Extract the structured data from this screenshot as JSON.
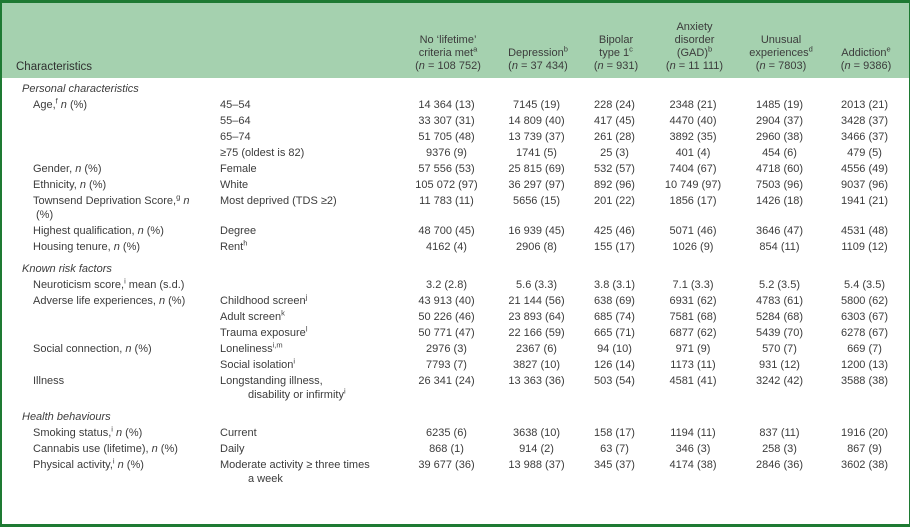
{
  "frame": {
    "border_color": "#1e7a33",
    "header_bg": "#a5d1af",
    "text_color": "#3c3c3c"
  },
  "header": {
    "characteristics_label": "Characteristics",
    "columns": [
      {
        "lines": [
          "No ‘lifetime’",
          "criteria met^{a}"
        ],
        "n": "(~n~ = 108 752)"
      },
      {
        "lines": [
          "Depression^{b}"
        ],
        "n": "(~n~ = 37 434)"
      },
      {
        "lines": [
          "Bipolar",
          "type 1^{c}"
        ],
        "n": "(~n~ = 931)"
      },
      {
        "lines": [
          "Anxiety",
          "disorder",
          "(GAD)^{b}"
        ],
        "n": "(~n~ = 11 111)"
      },
      {
        "lines": [
          "Unusual",
          "experiences^{d}"
        ],
        "n": "(~n~ = 7803)"
      },
      {
        "lines": [
          "Addiction^{e}"
        ],
        "n": "(~n~ = 9386)"
      }
    ]
  },
  "sections": [
    {
      "title": "Personal characteristics",
      "rows": [
        {
          "label": "Age,^{f} ~n~ (%)",
          "sub": "45–54",
          "values": [
            "14 364 (13)",
            "7145 (19)",
            "228 (24)",
            "2348 (21)",
            "1485 (19)",
            "2013 (21)"
          ]
        },
        {
          "label": "",
          "sub": "55–64",
          "values": [
            "33 307 (31)",
            "14 809 (40)",
            "417 (45)",
            "4470 (40)",
            "2904 (37)",
            "3428 (37)"
          ]
        },
        {
          "label": "",
          "sub": "65–74",
          "values": [
            "51 705 (48)",
            "13 739 (37)",
            "261 (28)",
            "3892 (35)",
            "2960 (38)",
            "3466 (37)"
          ]
        },
        {
          "label": "",
          "sub": "≥75 (oldest is 82)",
          "values": [
            "9376 (9)",
            "1741 (5)",
            "25 (3)",
            "401 (4)",
            "454 (6)",
            "479 (5)"
          ]
        },
        {
          "label": "Gender, ~n~ (%)",
          "sub": "Female",
          "values": [
            "57 556 (53)",
            "25 815 (69)",
            "532 (57)",
            "7404 (67)",
            "4718 (60)",
            "4556 (49)"
          ]
        },
        {
          "label": "Ethnicity, ~n~ (%)",
          "sub": "White",
          "values": [
            "105 072 (97)",
            "36 297 (97)",
            "892 (96)",
            "10 749 (97)",
            "7503 (96)",
            "9037 (96)"
          ]
        },
        {
          "label": "Townsend Deprivation Score,^{g} ~n~ (%)",
          "sub": "Most deprived (TDS ≥2)",
          "values": [
            "11 783 (11)",
            "5656 (15)",
            "201 (22)",
            "1856 (17)",
            "1426 (18)",
            "1941 (21)"
          ]
        },
        {
          "label": "Highest qualification, ~n~ (%)",
          "sub": "Degree",
          "values": [
            "48 700 (45)",
            "16 939 (45)",
            "425 (46)",
            "5071 (46)",
            "3646 (47)",
            "4531 (48)"
          ]
        },
        {
          "label": "Housing tenure, ~n~ (%)",
          "sub": "Rent^{h}",
          "values": [
            "4162 (4)",
            "2906 (8)",
            "155 (17)",
            "1026 (9)",
            "854 (11)",
            "1109 (12)"
          ]
        }
      ]
    },
    {
      "title": "Known risk factors",
      "rows": [
        {
          "label": "Neuroticism score,^{i} mean (s.d.)",
          "sub": "",
          "values": [
            "3.2 (2.8)",
            "5.6 (3.3)",
            "3.8 (3.1)",
            "7.1 (3.3)",
            "5.2 (3.5)",
            "5.4 (3.5)"
          ]
        },
        {
          "label": "Adverse life experiences, ~n~ (%)",
          "sub": "Childhood screen^{j}",
          "values": [
            "43 913 (40)",
            "21 144 (56)",
            "638 (69)",
            "6931 (62)",
            "4783 (61)",
            "5800 (62)"
          ]
        },
        {
          "label": "",
          "sub": "Adult screen^{k}",
          "values": [
            "50 226 (46)",
            "23 893 (64)",
            "685 (74)",
            "7581 (68)",
            "5284 (68)",
            "6303 (67)"
          ]
        },
        {
          "label": "",
          "sub": "Trauma exposure^{l}",
          "values": [
            "50 771 (47)",
            "22 166 (59)",
            "665 (71)",
            "6877 (62)",
            "5439 (70)",
            "6278 (67)"
          ]
        },
        {
          "label": "Social connection, ~n~ (%)",
          "sub": "Loneliness^{i,m}",
          "values": [
            "2976 (3)",
            "2367 (6)",
            "94 (10)",
            "971 (9)",
            "570 (7)",
            "669 (7)"
          ]
        },
        {
          "label": "",
          "sub": "Social isolation^{i}",
          "values": [
            "7793 (7)",
            "3827 (10)",
            "126 (14)",
            "1173 (11)",
            "931 (12)",
            "1200 (13)"
          ]
        },
        {
          "label": "Illness",
          "sub": "Longstanding illness,\ndisability or infirmity^{i}",
          "values": [
            "26 341 (24)",
            "13 363 (36)",
            "503 (54)",
            "4581 (41)",
            "3242 (42)",
            "3588 (38)"
          ]
        }
      ]
    },
    {
      "title": "Health behaviours",
      "rows": [
        {
          "label": "Smoking status,^{i} ~n~ (%)",
          "sub": "Current",
          "values": [
            "6235 (6)",
            "3638 (10)",
            "158 (17)",
            "1194 (11)",
            "837 (11)",
            "1916 (20)"
          ]
        },
        {
          "label": "Cannabis use (lifetime), ~n~ (%)",
          "sub": "Daily",
          "values": [
            "868 (1)",
            "914 (2)",
            "63 (7)",
            "346 (3)",
            "258 (3)",
            "867 (9)"
          ]
        },
        {
          "label": "Physical activity,^{i} ~n~ (%)",
          "sub": "Moderate activity ≥ three times\na week",
          "values": [
            "39 677 (36)",
            "13 988 (37)",
            "345 (37)",
            "4174 (38)",
            "2846 (36)",
            "3602 (38)"
          ]
        }
      ]
    }
  ]
}
